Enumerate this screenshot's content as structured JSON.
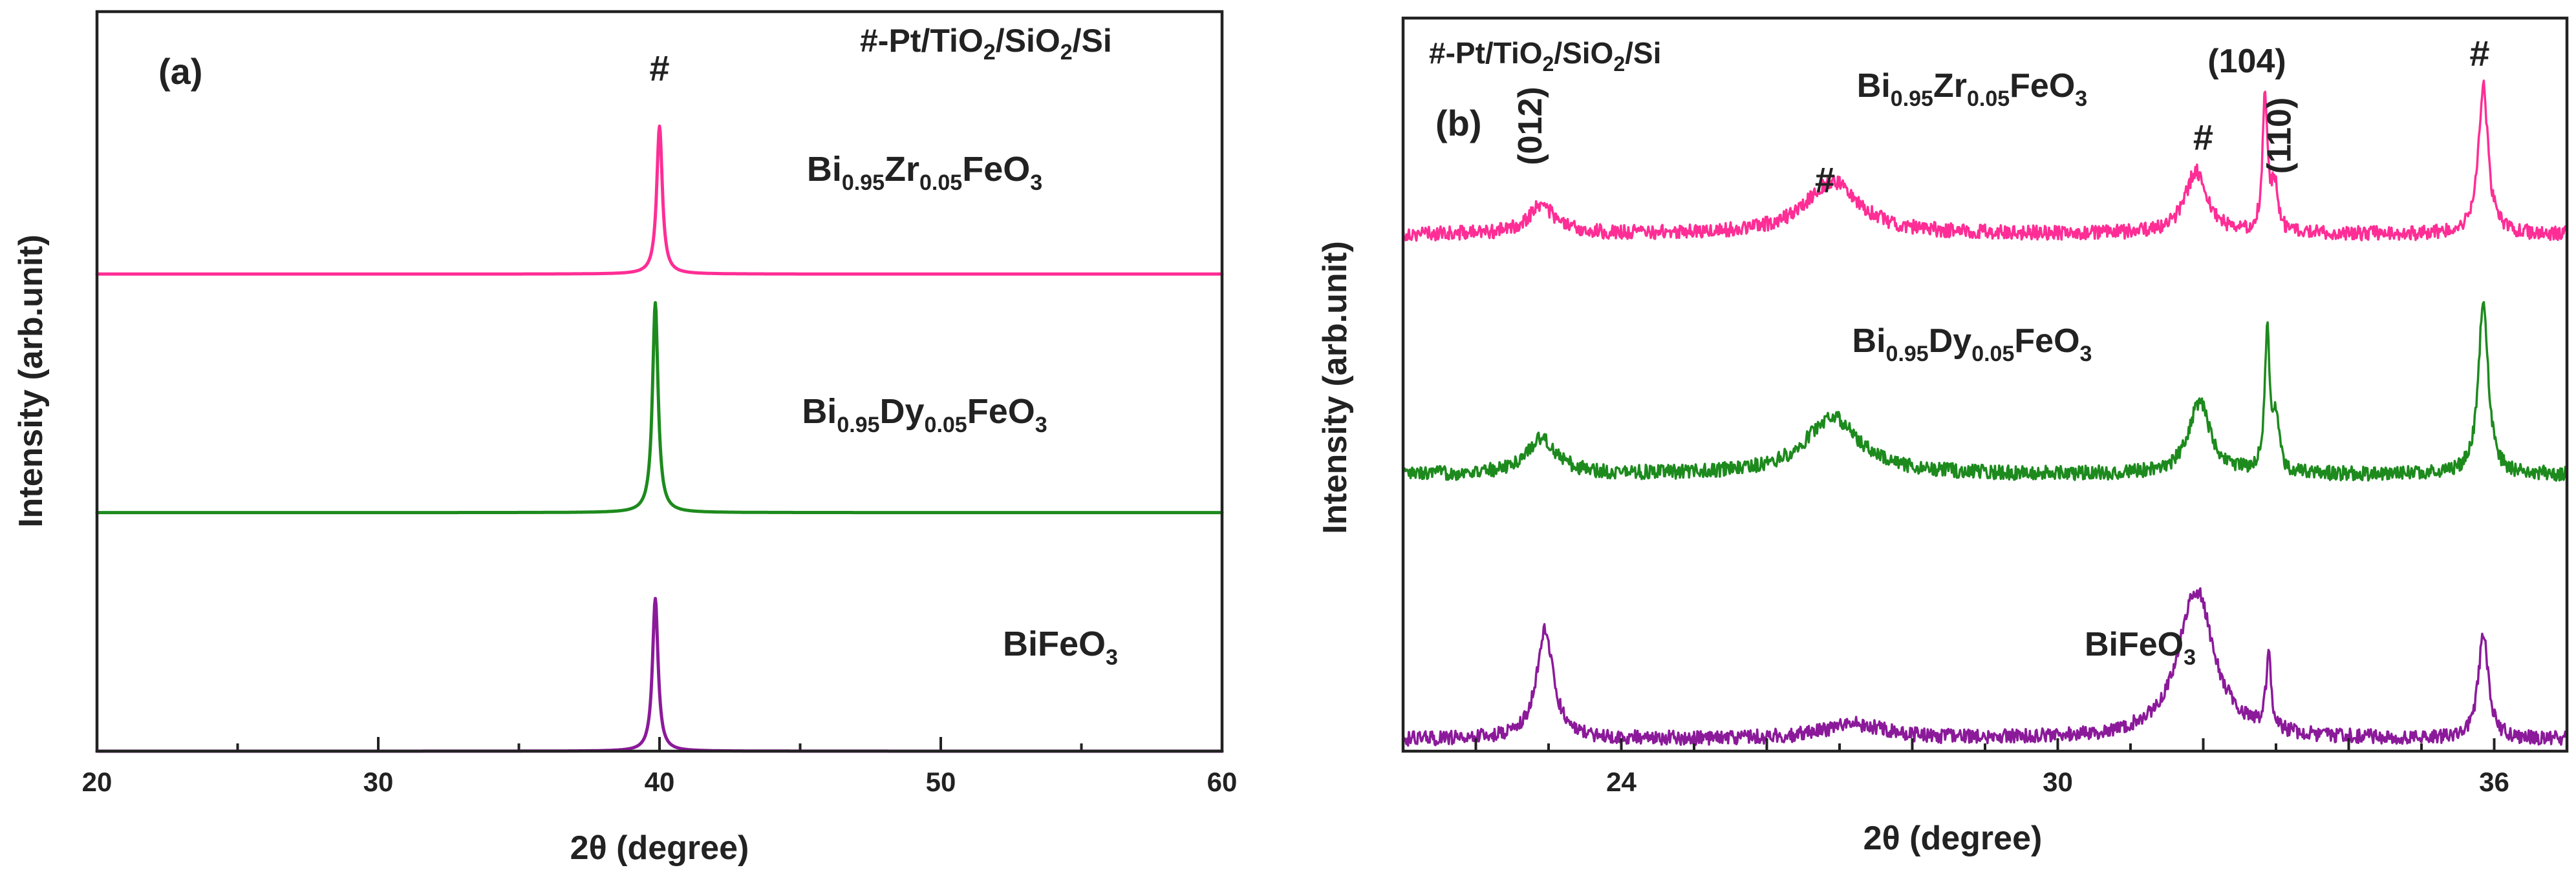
{
  "colors": {
    "zr": "#ff2d95",
    "dy": "#1d8a1d",
    "bfo": "#8b1a9a",
    "axis": "#222222"
  },
  "chart_data": [
    {
      "type": "line",
      "panel_label": "(a)",
      "xlabel": "2θ (degree)",
      "ylabel": "Intensity (arb.unit)",
      "xlim": [
        20,
        60
      ],
      "ylim": [
        0,
        3.1
      ],
      "xticks": [
        20,
        30,
        40,
        50,
        60
      ],
      "xtick_labels": [
        "20",
        "30",
        "40",
        "50",
        "60"
      ],
      "substrate_legend": {
        "prefix": "#-Pt/TiO",
        "sub1": "2",
        "mid": "/SiO",
        "sub2": "2",
        "suffix": "/Si"
      },
      "peak_marker": {
        "text": "#",
        "x": 40
      },
      "series": [
        {
          "name": "Bi0.95Zr0.05FeO3",
          "color_key": "zr",
          "offset": 2.0,
          "baseline": 0.0,
          "peaks": [
            {
              "x": 40.0,
              "height": 0.62,
              "width": 0.12
            }
          ],
          "noise": 0.0,
          "label_parts": [
            "Bi",
            "0.95",
            "Zr",
            "0.05",
            "FeO",
            "3"
          ]
        },
        {
          "name": "Bi0.95Dy0.05FeO3",
          "color_key": "dy",
          "offset": 1.0,
          "baseline": 0.0,
          "peaks": [
            {
              "x": 39.85,
              "height": 0.88,
              "width": 0.12
            }
          ],
          "noise": 0.0,
          "label_parts": [
            "Bi",
            "0.95",
            "Dy",
            "0.05",
            "FeO",
            "3"
          ]
        },
        {
          "name": "BiFeO3",
          "color_key": "bfo",
          "offset": 0.0,
          "baseline": 0.0,
          "peaks": [
            {
              "x": 39.85,
              "height": 0.64,
              "width": 0.12
            }
          ],
          "noise": 0.0,
          "label_parts": [
            "BiFeO",
            "3"
          ]
        }
      ]
    },
    {
      "type": "line",
      "panel_label": "(b)",
      "xlabel": "2θ (degree)",
      "ylabel": "Intensity (arb.unit)",
      "xlim": [
        21,
        37
      ],
      "ylim": [
        0,
        3.05
      ],
      "xticks": [
        22,
        24,
        26,
        28,
        30,
        32,
        34,
        36
      ],
      "xtick_labels": [
        "",
        "24",
        "",
        "",
        "30",
        "",
        "",
        "36"
      ],
      "substrate_legend": {
        "prefix": "#-Pt/TiO",
        "sub1": "2",
        "mid": "/SiO",
        "sub2": "2",
        "suffix": "/Si"
      },
      "reflections": [
        {
          "text": "(012)",
          "x": 22.9,
          "rotated": true
        },
        {
          "text": "(104)",
          "x": 32.6,
          "rotated": false
        },
        {
          "text": "(110)",
          "x": 33.2,
          "rotated": true
        }
      ],
      "hash_markers": [
        {
          "text": "#",
          "x": 26.8
        },
        {
          "text": "#",
          "x": 32.0
        },
        {
          "text": "#",
          "x": 35.8
        }
      ],
      "series": [
        {
          "name": "Bi0.95Zr0.05FeO3",
          "color_key": "zr",
          "offset": 2.15,
          "baseline": 0.0,
          "peaks": [
            {
              "x": 22.9,
              "height": 0.12,
              "width": 0.22
            },
            {
              "x": 26.9,
              "height": 0.22,
              "width": 0.45
            },
            {
              "x": 31.9,
              "height": 0.26,
              "width": 0.18
            },
            {
              "x": 32.85,
              "height": 0.57,
              "width": 0.04
            },
            {
              "x": 32.98,
              "height": 0.2,
              "width": 0.05
            },
            {
              "x": 35.85,
              "height": 0.62,
              "width": 0.08
            }
          ],
          "noise": 0.03,
          "label_parts": [
            "Bi",
            "0.95",
            "Zr",
            "0.05",
            "FeO",
            "3"
          ]
        },
        {
          "name": "Bi0.95Dy0.05FeO3",
          "color_key": "dy",
          "offset": 1.15,
          "baseline": 0.0,
          "peaks": [
            {
              "x": 22.9,
              "height": 0.15,
              "width": 0.25
            },
            {
              "x": 26.9,
              "height": 0.24,
              "width": 0.45
            },
            {
              "x": 31.95,
              "height": 0.3,
              "width": 0.18
            },
            {
              "x": 32.88,
              "height": 0.6,
              "width": 0.04
            },
            {
              "x": 33.0,
              "height": 0.22,
              "width": 0.05
            },
            {
              "x": 35.85,
              "height": 0.72,
              "width": 0.08
            }
          ],
          "noise": 0.03,
          "label_parts": [
            "Bi",
            "0.95",
            "Dy",
            "0.05",
            "FeO",
            "3"
          ]
        },
        {
          "name": "BiFeO3",
          "color_key": "bfo",
          "offset": 0.05,
          "baseline": 0.0,
          "peaks": [
            {
              "x": 22.95,
              "height": 0.45,
              "width": 0.14
            },
            {
              "x": 27.2,
              "height": 0.06,
              "width": 0.5
            },
            {
              "x": 31.9,
              "height": 0.62,
              "width": 0.3
            },
            {
              "x": 32.9,
              "height": 0.33,
              "width": 0.04
            },
            {
              "x": 35.85,
              "height": 0.44,
              "width": 0.08
            }
          ],
          "noise": 0.03,
          "label_parts": [
            "BiFeO",
            "3"
          ]
        }
      ]
    }
  ]
}
